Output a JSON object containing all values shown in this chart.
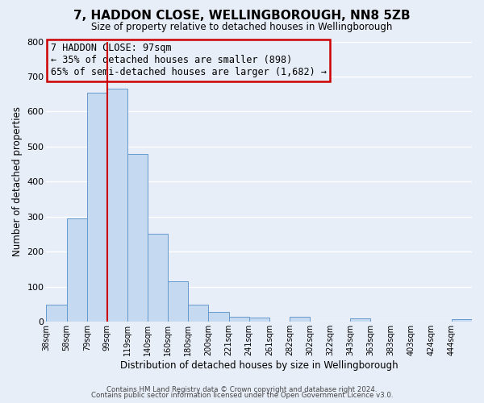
{
  "title": "7, HADDON CLOSE, WELLINGBOROUGH, NN8 5ZB",
  "subtitle": "Size of property relative to detached houses in Wellingborough",
  "xlabel": "Distribution of detached houses by size in Wellingborough",
  "ylabel": "Number of detached properties",
  "bin_labels": [
    "38sqm",
    "58sqm",
    "79sqm",
    "99sqm",
    "119sqm",
    "140sqm",
    "160sqm",
    "180sqm",
    "200sqm",
    "221sqm",
    "241sqm",
    "261sqm",
    "282sqm",
    "302sqm",
    "322sqm",
    "343sqm",
    "363sqm",
    "383sqm",
    "403sqm",
    "424sqm",
    "444sqm"
  ],
  "bar_heights": [
    48,
    295,
    653,
    665,
    478,
    252,
    115,
    50,
    28,
    15,
    13,
    0,
    14,
    0,
    0,
    10,
    0,
    0,
    0,
    0,
    8
  ],
  "bar_color": "#c5d9f0",
  "bar_edge_color": "#6699cc",
  "vline_index": 3,
  "vline_color": "#cc0000",
  "ylim": [
    0,
    800
  ],
  "yticks": [
    0,
    100,
    200,
    300,
    400,
    500,
    600,
    700,
    800
  ],
  "annotation_box_text": "7 HADDON CLOSE: 97sqm\n← 35% of detached houses are smaller (898)\n65% of semi-detached houses are larger (1,682) →",
  "annotation_box_color": "#cc0000",
  "footer_line1": "Contains HM Land Registry data © Crown copyright and database right 2024.",
  "footer_line2": "Contains public sector information licensed under the Open Government Licence v3.0.",
  "bg_color": "#e8eef8",
  "grid_color": "#ffffff"
}
